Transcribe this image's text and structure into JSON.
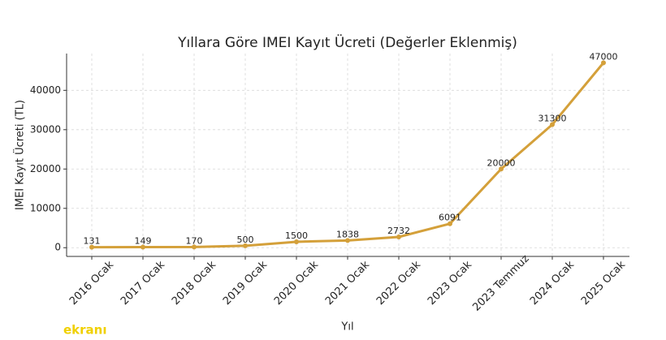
{
  "chart_data": {
    "type": "line",
    "title": "Yıllara Göre IMEI Kayıt Ücreti (Değerler Eklenmiş)",
    "x_label": "Yıl",
    "y_label": "IMEI Kayıt Ücreti (TL)",
    "categories": [
      "2016 Ocak",
      "2017 Ocak",
      "2018 Ocak",
      "2019 Ocak",
      "2020 Ocak",
      "2021 Ocak",
      "2022 Ocak",
      "2023 Ocak",
      "2023 Temmuz",
      "2024 Ocak",
      "2025 Ocak"
    ],
    "values": [
      131,
      149,
      170,
      500,
      1500,
      1838,
      2732,
      6091,
      20000,
      31300,
      47000
    ],
    "color": "#d4a03a",
    "ylim": [
      -2219,
      49350
    ],
    "yticks": [
      0,
      10000,
      20000,
      30000,
      40000
    ],
    "grid": true,
    "watermark": "ekranı"
  }
}
